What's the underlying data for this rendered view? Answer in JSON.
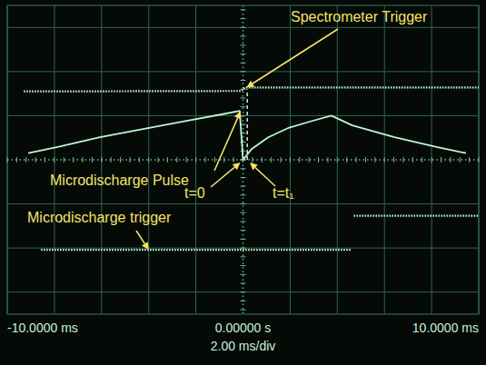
{
  "chart_data": {
    "type": "line",
    "xlabel": "2.00 ms/div",
    "xlim": [
      -10,
      10
    ],
    "ylim": [
      -3.5,
      3.5
    ],
    "xticks": [
      {
        "value": -10,
        "label": "-10.0000 ms"
      },
      {
        "value": -8,
        "label": null
      },
      {
        "value": -6,
        "label": null
      },
      {
        "value": -4,
        "label": null
      },
      {
        "value": -2,
        "label": null
      },
      {
        "value": 0,
        "label": "0.00000 s"
      },
      {
        "value": 2,
        "label": null
      },
      {
        "value": 4,
        "label": null
      },
      {
        "value": 6,
        "label": null
      },
      {
        "value": 8,
        "label": null
      },
      {
        "value": 10,
        "label": "10.0000 ms"
      }
    ],
    "yticks": [
      -3,
      -2,
      -1,
      0,
      1,
      2,
      3
    ],
    "grid": true,
    "tick_labels": "x",
    "series": [
      {
        "name": "Spectrometer Trigger",
        "color": "#bdf5d8",
        "line_style": "dotted",
        "label_x": 0.15,
        "label_y": 1.64,
        "x": [
          -9.3,
          -0.1,
          0.1,
          10
        ],
        "values": [
          1.55,
          1.56,
          1.64,
          1.64
        ]
      },
      {
        "name": "Microdischarge Pulse",
        "color": "#bdf5d8",
        "line_style": "solid",
        "label_x": -0.1,
        "label_y": 1.1,
        "x": [
          -9.11,
          -7.86,
          -6.07,
          -4.29,
          -2.5,
          -0.71,
          -0.14,
          0,
          0.36,
          1.07,
          1.96,
          2.86,
          3.75,
          4.64,
          6.43,
          8.21,
          9.46
        ],
        "values": [
          0.15,
          0.29,
          0.51,
          0.69,
          0.87,
          1.05,
          1.11,
          0,
          0.24,
          0.51,
          0.73,
          0.87,
          1.0,
          0.78,
          0.51,
          0.29,
          0.15
        ]
      },
      {
        "name": "Microdischarge trigger",
        "color": "#bdf5d8",
        "line_style": "dotted",
        "label_x": -4.0,
        "label_y": -2.04,
        "x": [
          -8.57,
          4.6,
          4.65,
          4.7,
          10
        ],
        "values": [
          -2.04,
          -2.04,
          null,
          -1.27,
          -1.27
        ]
      }
    ],
    "annotations": [
      {
        "text": "t=0",
        "x": 0,
        "y": 0
      },
      {
        "text": "t=t₁",
        "x": 0.18,
        "y": 0
      }
    ],
    "t1_line": {
      "x": 0.18,
      "y": [
        0,
        1.6
      ]
    }
  }
}
